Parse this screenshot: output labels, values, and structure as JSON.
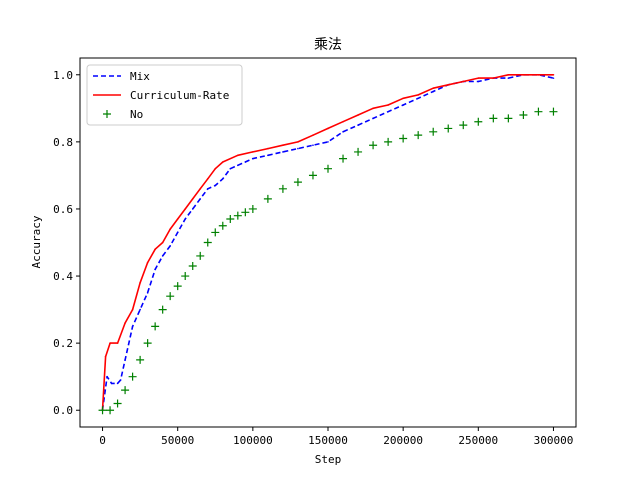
{
  "chart_data": {
    "type": "line",
    "title": "乘法",
    "xlabel": "Step",
    "ylabel": "Accuracy",
    "xlim": [
      -15000,
      315000
    ],
    "ylim": [
      -0.05,
      1.05
    ],
    "xticks": [
      0,
      50000,
      100000,
      150000,
      200000,
      250000,
      300000
    ],
    "xtick_labels": [
      "0",
      "50000",
      "100000",
      "150000",
      "200000",
      "250000",
      "300000"
    ],
    "yticks": [
      0.0,
      0.2,
      0.4,
      0.6,
      0.8,
      1.0
    ],
    "ytick_labels": [
      "0.0",
      "0.2",
      "0.4",
      "0.6",
      "0.8",
      "1.0"
    ],
    "grid": false,
    "legend_position": "top-left",
    "series": [
      {
        "name": "Mix",
        "color": "#0000ff",
        "style": "dashed",
        "x": [
          0,
          3000,
          6000,
          10000,
          12000,
          15000,
          20000,
          25000,
          30000,
          35000,
          40000,
          45000,
          50000,
          55000,
          60000,
          65000,
          70000,
          75000,
          80000,
          85000,
          90000,
          95000,
          100000,
          110000,
          120000,
          130000,
          140000,
          150000,
          160000,
          170000,
          180000,
          190000,
          200000,
          210000,
          220000,
          230000,
          240000,
          250000,
          260000,
          270000,
          280000,
          290000,
          300000
        ],
        "y": [
          0.0,
          0.1,
          0.08,
          0.08,
          0.09,
          0.15,
          0.25,
          0.3,
          0.35,
          0.42,
          0.46,
          0.49,
          0.53,
          0.57,
          0.6,
          0.63,
          0.66,
          0.67,
          0.69,
          0.72,
          0.73,
          0.74,
          0.75,
          0.76,
          0.77,
          0.78,
          0.79,
          0.8,
          0.83,
          0.85,
          0.87,
          0.89,
          0.91,
          0.93,
          0.95,
          0.97,
          0.98,
          0.98,
          0.99,
          0.99,
          1.0,
          1.0,
          0.99
        ]
      },
      {
        "name": "Curriculum-Rate",
        "color": "#ff0000",
        "style": "solid",
        "x": [
          0,
          2000,
          5000,
          10000,
          15000,
          20000,
          25000,
          30000,
          35000,
          40000,
          45000,
          50000,
          55000,
          60000,
          65000,
          70000,
          75000,
          80000,
          90000,
          100000,
          110000,
          120000,
          130000,
          140000,
          150000,
          160000,
          170000,
          180000,
          190000,
          200000,
          210000,
          220000,
          230000,
          240000,
          250000,
          260000,
          270000,
          280000,
          290000,
          300000
        ],
        "y": [
          0.0,
          0.16,
          0.2,
          0.2,
          0.26,
          0.3,
          0.38,
          0.44,
          0.48,
          0.5,
          0.54,
          0.57,
          0.6,
          0.63,
          0.66,
          0.69,
          0.72,
          0.74,
          0.76,
          0.77,
          0.78,
          0.79,
          0.8,
          0.82,
          0.84,
          0.86,
          0.88,
          0.9,
          0.91,
          0.93,
          0.94,
          0.96,
          0.97,
          0.98,
          0.99,
          0.99,
          1.0,
          1.0,
          1.0,
          1.0
        ]
      },
      {
        "name": "No",
        "color": "#008000",
        "style": "markers",
        "marker": "+",
        "x": [
          0,
          5000,
          10000,
          15000,
          20000,
          25000,
          30000,
          35000,
          40000,
          45000,
          50000,
          55000,
          60000,
          65000,
          70000,
          75000,
          80000,
          85000,
          90000,
          95000,
          100000,
          110000,
          120000,
          130000,
          140000,
          150000,
          160000,
          170000,
          180000,
          190000,
          200000,
          210000,
          220000,
          230000,
          240000,
          250000,
          260000,
          270000,
          280000,
          290000,
          300000
        ],
        "y": [
          0.0,
          0.0,
          0.02,
          0.06,
          0.1,
          0.15,
          0.2,
          0.25,
          0.3,
          0.34,
          0.37,
          0.4,
          0.43,
          0.46,
          0.5,
          0.53,
          0.55,
          0.57,
          0.58,
          0.59,
          0.6,
          0.63,
          0.66,
          0.68,
          0.7,
          0.72,
          0.75,
          0.77,
          0.79,
          0.8,
          0.81,
          0.82,
          0.83,
          0.84,
          0.85,
          0.86,
          0.87,
          0.87,
          0.88,
          0.89,
          0.89
        ]
      }
    ]
  }
}
